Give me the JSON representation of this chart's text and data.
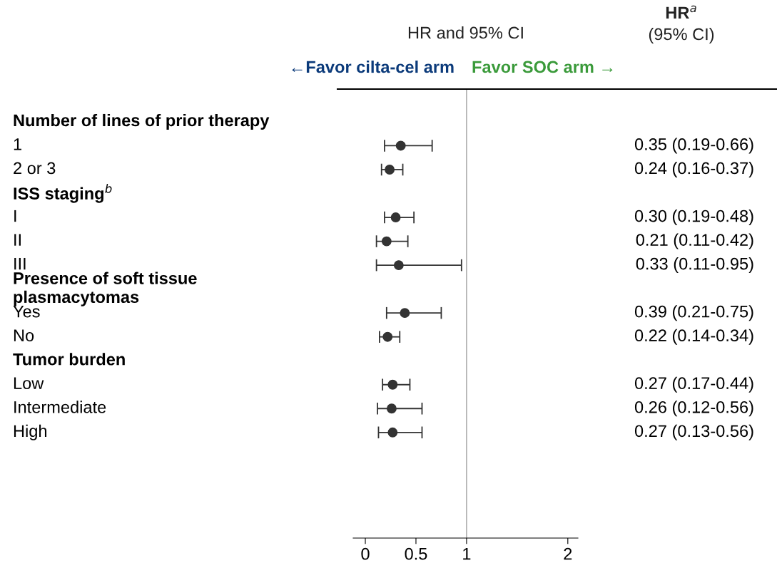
{
  "chart_data": {
    "type": "scatter",
    "orientation": "horizontal",
    "categories": [
      "Number of lines of prior therapy",
      "1",
      "2 or 3",
      "ISS staging$^{b}$",
      "I",
      "II",
      "III",
      "Presence of soft tissue\nplasmacytomas",
      "Yes",
      "No",
      "Tumor burden",
      "Low",
      "Intermediate",
      "High"
    ],
    "values": [
      null,
      0.35,
      0.24,
      null,
      0.3,
      0.21,
      0.33,
      null,
      0.39,
      0.22,
      null,
      0.27,
      0.26,
      0.27
    ],
    "errors": [
      null,
      [
        0.19,
        0.66
      ],
      [
        0.16,
        0.37
      ],
      null,
      [
        0.19,
        0.48
      ],
      [
        0.11,
        0.42
      ],
      [
        0.11,
        0.95
      ],
      null,
      [
        0.21,
        0.75
      ],
      [
        0.14,
        0.34
      ],
      null,
      [
        0.17,
        0.44
      ],
      [
        0.12,
        0.56
      ],
      [
        0.13,
        0.56
      ]
    ],
    "value_labels": [
      null,
      "0.35 (0.19-0.66)",
      "0.24 (0.16-0.37)",
      null,
      "0.30 (0.19-0.48)",
      "0.21 (0.11-0.42)",
      "0.33 (0.11-0.95)",
      null,
      "0.39 (0.21-0.75)",
      "0.22 (0.14-0.34)",
      null,
      "0.27 (0.17-0.44)",
      "0.26 (0.12-0.56)",
      "0.27 (0.13-0.56)"
    ],
    "color": "#333333",
    "marker": "circle",
    "xlim": [
      -0.12,
      2.1
    ],
    "xticks": [
      0,
      0.5,
      1,
      2
    ],
    "ref_lines": [
      {
        "axis": "x",
        "value": 1,
        "color": "#a0a0a0"
      }
    ],
    "annotations": [
      "HR and 95% CI",
      "HR$^{a}$",
      "(95% CI)",
      "←Favor cilta-cel arm",
      "Favor SOC arm →"
    ],
    "grid": false
  }
}
